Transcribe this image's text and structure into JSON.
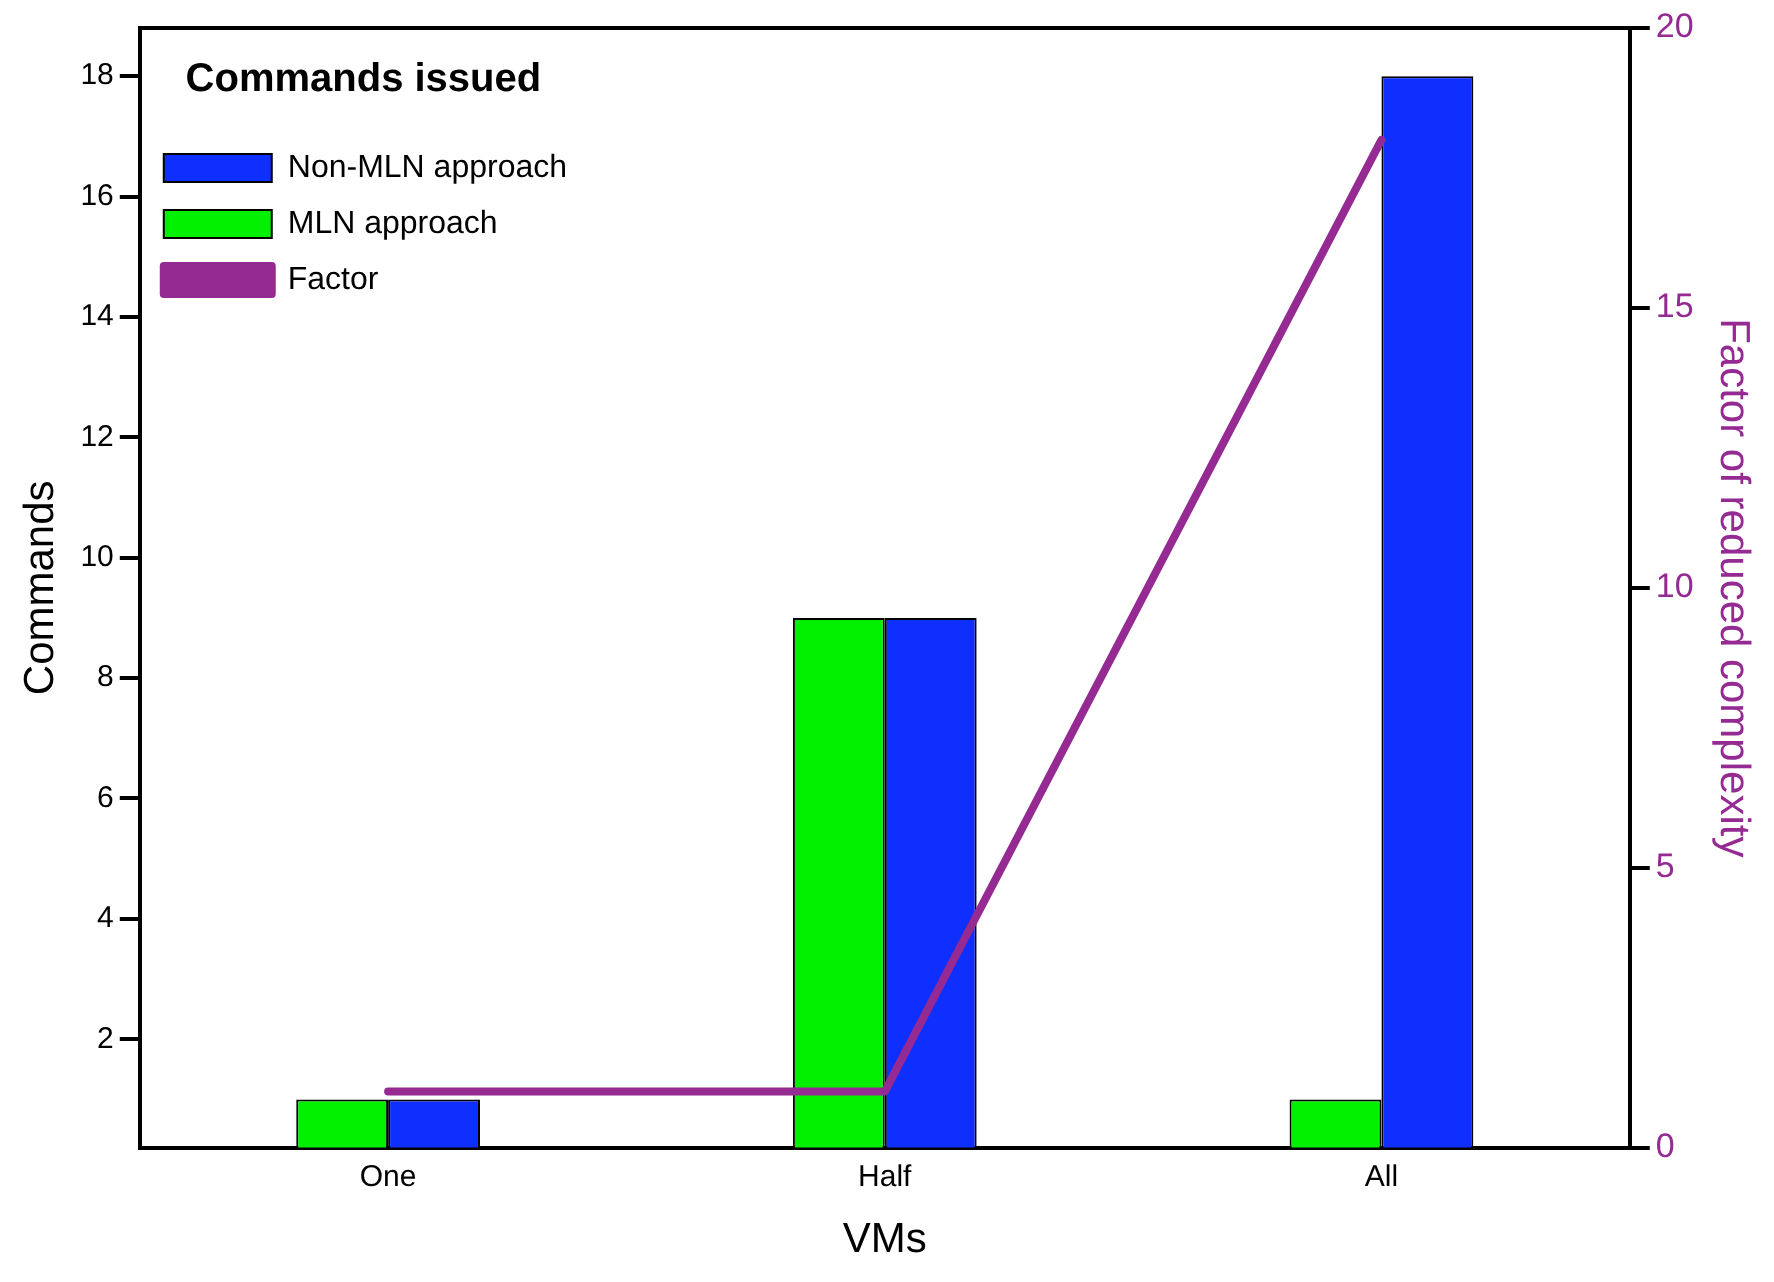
{
  "chart_data": {
    "type": "bar",
    "xlabel": "VMs",
    "ylabel": "Commands",
    "y2label": "Factor of reduced complexity",
    "legend_title": "Commands issued",
    "legend": "top left",
    "grid": false,
    "categories": [
      "One",
      "Half",
      "All"
    ],
    "series": [
      {
        "name": "MLN approach",
        "color": "#00f000",
        "values": [
          1,
          9,
          1
        ]
      },
      {
        "name": "Non-MLN approach",
        "color": "#0f2fff",
        "values": [
          1,
          9,
          18
        ]
      },
      {
        "name": "Factor",
        "type": "line",
        "axis": "y2",
        "color": "#952a92",
        "values": [
          1,
          1,
          18
        ],
        "marker": "none",
        "line_style": "solid"
      }
    ],
    "ylim": [
      0.2,
      18.8
    ],
    "yticks": [
      2,
      4,
      6,
      8,
      10,
      12,
      14,
      16,
      18
    ],
    "y2lim": [
      0,
      20
    ],
    "y2ticks": [
      0,
      5,
      10,
      15,
      20
    ]
  }
}
